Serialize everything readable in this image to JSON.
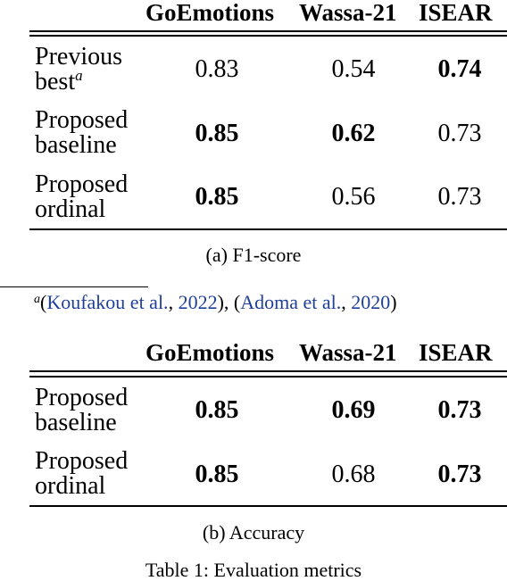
{
  "table_a": {
    "columns": [
      "GoEmotions",
      "Wassa-21",
      "ISEAR"
    ],
    "rows": [
      {
        "label_line1": "Previous",
        "label_line2": "best",
        "label_sup": "a",
        "values": [
          "0.83",
          "0.54",
          "0.74"
        ],
        "bold": [
          false,
          false,
          true
        ]
      },
      {
        "label_line1": "Proposed",
        "label_line2": "baseline",
        "values": [
          "0.85",
          "0.62",
          "0.73"
        ],
        "bold": [
          true,
          true,
          false
        ]
      },
      {
        "label_line1": "Proposed",
        "label_line2": "ordinal",
        "values": [
          "0.85",
          "0.56",
          "0.73"
        ],
        "bold": [
          true,
          false,
          false
        ]
      }
    ],
    "caption": "(a) F1-score"
  },
  "footnote": {
    "marker": "a",
    "open1": "(",
    "cite1_authors": "Koufakou et al.",
    "sep1": ", ",
    "cite1_year": "2022",
    "close1": "), ",
    "open2": "(",
    "cite2_authors": "Adoma et al.",
    "sep2": ", ",
    "cite2_year": "2020",
    "close2": ")"
  },
  "table_b": {
    "columns": [
      "GoEmotions",
      "Wassa-21",
      "ISEAR"
    ],
    "rows": [
      {
        "label_line1": "Proposed",
        "label_line2": "baseline",
        "values": [
          "0.85",
          "0.69",
          "0.73"
        ],
        "bold": [
          true,
          true,
          true
        ]
      },
      {
        "label_line1": "Proposed",
        "label_line2": "ordinal",
        "values": [
          "0.85",
          "0.68",
          "0.73"
        ],
        "bold": [
          true,
          false,
          true
        ]
      }
    ],
    "caption": "(b) Accuracy"
  },
  "table_caption": "Table 1: Evaluation metrics"
}
